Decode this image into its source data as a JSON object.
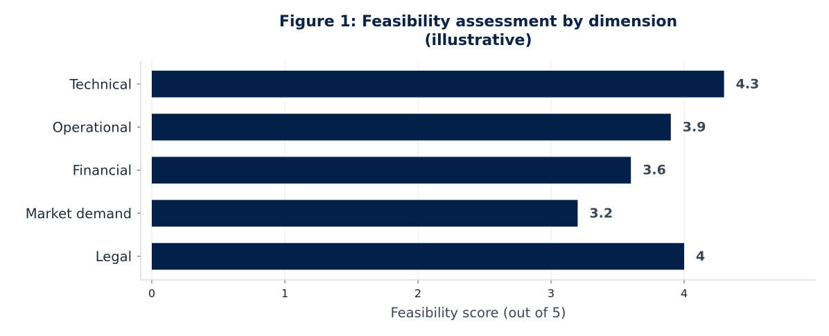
{
  "chart_data": {
    "type": "bar",
    "orientation": "horizontal",
    "title": [
      "Figure 1: Feasibility assessment by dimension",
      "(illustrative)"
    ],
    "categories": [
      "Technical",
      "Operational",
      "Financial",
      "Market demand",
      "Legal"
    ],
    "values": [
      4.3,
      3.9,
      3.6,
      3.2,
      4
    ],
    "value_labels": [
      "4.3",
      "3.9",
      "3.6",
      "3.2",
      "4"
    ],
    "xlabel": "Feasibility score (out of 5)",
    "ylabel": "",
    "xlim": [
      0,
      5
    ],
    "xticks": [
      0,
      1,
      2,
      3,
      4
    ],
    "grid": "vertical",
    "bar_color": "#03204a",
    "title_color": "#0a2346",
    "label_color": "#3b4657"
  }
}
